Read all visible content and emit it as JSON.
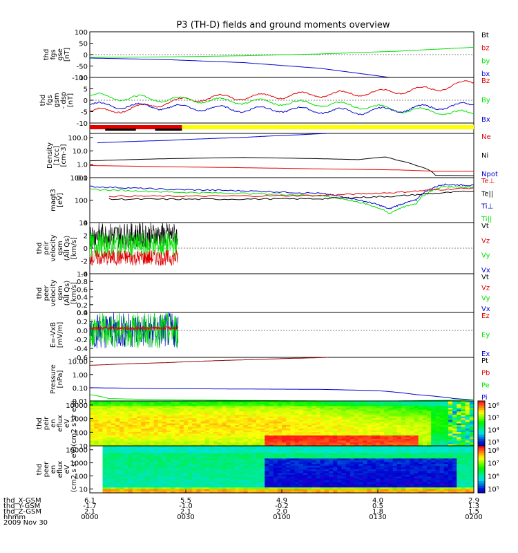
{
  "title": "P3 (TH-D) fields and ground moments overview",
  "colors": {
    "black": "#000000",
    "red": "#e00000",
    "green": "#00e000",
    "blue": "#0000d0",
    "yellow": "#ffff00",
    "darkred": "#8b0000"
  },
  "chart_data": [
    {
      "type": "line",
      "id": "fgs_gse",
      "ylabel_lines": [
        "thd",
        "fgs",
        "gse",
        "[nT]"
      ],
      "ylim": [
        -100,
        100
      ],
      "yticks": [
        -100,
        -50,
        0,
        50,
        100
      ],
      "legend": [
        {
          "text": "Bt",
          "color": "black"
        },
        {
          "text": "bz",
          "color": "red"
        },
        {
          "text": "by",
          "color": "green"
        },
        {
          "text": "bx",
          "color": "blue"
        }
      ],
      "series": [
        {
          "name": "by",
          "color": "green",
          "x": [
            0,
            0.2,
            0.4,
            0.6,
            0.8,
            1.0
          ],
          "y": [
            -12,
            -10,
            -5,
            3,
            15,
            32
          ]
        },
        {
          "name": "bx",
          "color": "blue",
          "x": [
            0,
            0.2,
            0.4,
            0.6,
            0.7,
            0.78,
            0.8
          ],
          "y": [
            -15,
            -22,
            -35,
            -60,
            -82,
            -100,
            -100
          ]
        }
      ]
    },
    {
      "type": "line",
      "id": "fgs_gsm",
      "ylabel_lines": [
        "thd",
        "fgs",
        "gsm",
        "- dsp",
        "[nT]"
      ],
      "ylim": [
        -10,
        10
      ],
      "yticks": [
        -10,
        -5,
        0,
        5,
        10
      ],
      "legend": [
        {
          "text": "Bz",
          "color": "red"
        },
        {
          "text": "By",
          "color": "green"
        },
        {
          "text": "Bx",
          "color": "blue"
        }
      ],
      "series": [
        {
          "name": "Bz",
          "color": "red",
          "x": [
            0,
            0.1,
            0.2,
            0.3,
            0.4,
            0.5,
            0.6,
            0.7,
            0.8,
            0.9,
            1.0
          ],
          "y": [
            -5,
            -4,
            -1,
            1,
            1.5,
            2,
            2.5,
            3,
            4,
            5,
            8
          ]
        },
        {
          "name": "By",
          "color": "green",
          "x": [
            0,
            0.1,
            0.2,
            0.3,
            0.4,
            0.5,
            0.6,
            0.7,
            0.8,
            0.9,
            1.0
          ],
          "y": [
            2,
            1,
            0.5,
            0,
            -0.5,
            -1,
            -1.5,
            -2.5,
            -4,
            -5,
            -6
          ]
        },
        {
          "name": "Bx",
          "color": "blue",
          "x": [
            0,
            0.1,
            0.2,
            0.3,
            0.4,
            0.5,
            0.6,
            0.7,
            0.8,
            0.9,
            1.0
          ],
          "y": [
            -2,
            -2.5,
            -3,
            -3.5,
            -4,
            -4,
            -4.5,
            -5,
            -4,
            -3,
            -2
          ]
        }
      ]
    },
    {
      "type": "line",
      "id": "density",
      "ylabel_lines": [
        "Density",
        "[1/cc]",
        "[cm-3]"
      ],
      "scale": "log",
      "ylim": [
        0.1,
        200
      ],
      "yticks": [
        0.1,
        1.0,
        10.0,
        100.0
      ],
      "yticklabels": [
        "0.1",
        "1.0",
        "10.0",
        "100.0"
      ],
      "legend": [
        {
          "text": "Ne",
          "color": "red"
        },
        {
          "text": "Ni",
          "color": "black"
        },
        {
          "text": "Npot",
          "color": "blue"
        }
      ],
      "series": [
        {
          "name": "Npot",
          "color": "blue",
          "x": [
            0.02,
            0.2,
            0.4,
            0.55,
            0.62
          ],
          "y": [
            40,
            60,
            100,
            160,
            200
          ]
        },
        {
          "name": "Ni",
          "color": "black",
          "x": [
            0,
            0.2,
            0.4,
            0.6,
            0.7,
            0.77,
            0.8,
            0.85,
            0.9,
            1.0
          ],
          "y": [
            1.8,
            2.6,
            3.2,
            2.6,
            2.2,
            3.5,
            2.0,
            0.8,
            0.15,
            0.14
          ]
        },
        {
          "name": "Ne",
          "color": "red",
          "x": [
            0,
            0.2,
            0.4,
            0.6,
            0.8,
            0.9,
            1.0
          ],
          "y": [
            0.8,
            0.65,
            0.55,
            0.45,
            0.38,
            0.3,
            0.3
          ]
        }
      ]
    },
    {
      "type": "line",
      "id": "mom",
      "ylabel_lines": [
        "magt3",
        "[eV]"
      ],
      "scale": "log",
      "ylim": [
        10,
        1000
      ],
      "yticks": [
        10,
        100,
        1000
      ],
      "yticklabels": [
        "10",
        "100",
        "1000"
      ],
      "legend": [
        {
          "text": "Te⊥",
          "color": "red"
        },
        {
          "text": "Te||",
          "color": "black"
        },
        {
          "text": "Ti⊥",
          "color": "blue"
        },
        {
          "text": "Ti||",
          "color": "green"
        }
      ],
      "series": [
        {
          "name": "Ti⊥",
          "color": "blue",
          "x": [
            0,
            0.2,
            0.4,
            0.6,
            0.7,
            0.78,
            0.85,
            0.92,
            1.0
          ],
          "y": [
            400,
            300,
            260,
            200,
            100,
            40,
            100,
            500,
            450
          ]
        },
        {
          "name": "Ti||",
          "color": "green",
          "x": [
            0,
            0.2,
            0.4,
            0.6,
            0.7,
            0.78,
            0.85,
            0.92,
            1.0
          ],
          "y": [
            300,
            230,
            200,
            160,
            80,
            25,
            70,
            400,
            380
          ]
        },
        {
          "name": "Te⊥",
          "color": "red",
          "x": [
            0.05,
            0.3,
            0.6,
            0.8,
            1.0
          ],
          "y": [
            150,
            150,
            160,
            220,
            350
          ]
        },
        {
          "name": "Te||",
          "color": "black",
          "x": [
            0.05,
            0.3,
            0.6,
            0.8,
            1.0
          ],
          "y": [
            110,
            110,
            115,
            150,
            250
          ]
        }
      ]
    },
    {
      "type": "line",
      "id": "peir_vel",
      "ylabel_lines": [
        "thd",
        "peir",
        "velocity",
        "gsm",
        "(All Qs)",
        "[km/s]"
      ],
      "ylim": [
        -4,
        4
      ],
      "yticks": [
        -4,
        -2,
        0,
        2,
        4
      ],
      "legend": [
        {
          "text": "Vt",
          "color": "black"
        },
        {
          "text": "Vz",
          "color": "red"
        },
        {
          "text": "Vy",
          "color": "green"
        },
        {
          "text": "Vx",
          "color": "blue"
        }
      ],
      "noise_end": 0.23
    },
    {
      "type": "line",
      "id": "peer_vel",
      "ylabel_lines": [
        "thd",
        "peer",
        "velocity",
        "gsm",
        "(All Qs)",
        "[km/s]"
      ],
      "ylim": [
        0,
        1.0
      ],
      "yticks": [
        0,
        0.2,
        0.4,
        0.6,
        0.8,
        1.0
      ],
      "yticklabels": [
        "0.0",
        "0.2",
        "0.4",
        "0.6",
        "0.8",
        "1.0"
      ],
      "legend": [
        {
          "text": "Vt",
          "color": "black"
        },
        {
          "text": "Vz",
          "color": "red"
        },
        {
          "text": "Vy",
          "color": "green"
        },
        {
          "text": "Vx",
          "color": "blue"
        }
      ]
    },
    {
      "type": "line",
      "id": "efield",
      "ylabel_lines": [
        "E=-VxB",
        "[mV/m]"
      ],
      "ylim": [
        -0.6,
        0.4
      ],
      "yticks": [
        -0.6,
        -0.4,
        -0.2,
        0.0,
        0.2,
        0.4
      ],
      "yticklabels": [
        "-0.6",
        "-0.4",
        "-0.2",
        "0.0",
        "0.2",
        "0.4"
      ],
      "legend": [
        {
          "text": "Ez",
          "color": "red"
        },
        {
          "text": "Ey",
          "color": "green"
        },
        {
          "text": "Ex",
          "color": "blue"
        }
      ],
      "noise_end": 0.23
    },
    {
      "type": "line",
      "id": "pressure",
      "ylabel_lines": [
        "Pressure",
        "[nPa]"
      ],
      "scale": "log",
      "ylim": [
        0.01,
        20
      ],
      "yticks": [
        0.01,
        0.1,
        1.0,
        10.0
      ],
      "yticklabels": [
        "0.01",
        "0.10",
        "1.00",
        "10.00"
      ],
      "legend": [
        {
          "text": "Pt",
          "color": "black"
        },
        {
          "text": "Pb",
          "color": "red"
        },
        {
          "text": "Pe",
          "color": "green"
        },
        {
          "text": "Pi",
          "color": "blue"
        }
      ],
      "series": [
        {
          "name": "Pt",
          "color": "darkred",
          "x": [
            0,
            0.2,
            0.4,
            0.6,
            0.62
          ],
          "y": [
            5,
            8,
            13,
            19,
            20
          ]
        },
        {
          "name": "Pi",
          "color": "blue",
          "x": [
            0,
            0.2,
            0.4,
            0.6,
            0.75,
            0.85,
            0.95,
            1.0
          ],
          "y": [
            0.1,
            0.085,
            0.08,
            0.075,
            0.06,
            0.03,
            0.015,
            0.012
          ]
        },
        {
          "name": "Pe",
          "color": "green",
          "x": [
            0,
            0.05,
            0.2,
            0.4,
            0.6,
            0.8,
            1.0
          ],
          "y": [
            0.03,
            0.015,
            0.012,
            0.011,
            0.01,
            0.01,
            0.012
          ]
        }
      ]
    },
    {
      "type": "heatmap",
      "id": "peir_en",
      "ylabel_lines": [
        "thd",
        "peir",
        "en",
        "eflux",
        "eV",
        "(cm2 s sr eV)"
      ],
      "scale": "log",
      "ylim": [
        10,
        20000
      ],
      "yticks": [
        10,
        100,
        1000,
        10000
      ],
      "yticklabels": [
        "10",
        "100",
        "1000",
        "10000"
      ],
      "colorbar": {
        "ticks": [
          "10³",
          "10⁴",
          "10⁵",
          "10⁶"
        ]
      }
    },
    {
      "type": "heatmap",
      "id": "peer_en",
      "ylabel_lines": [
        "thd",
        "peer",
        "en",
        "eflux",
        "eV",
        "(cm2 s sr eV)"
      ],
      "scale": "log",
      "ylim": [
        5,
        20000
      ],
      "yticks": [
        10,
        100,
        1000,
        10000
      ],
      "yticklabels": [
        "10",
        "100",
        "1000",
        "10000"
      ],
      "colorbar": {
        "ticks": [
          "10⁵",
          "10⁶",
          "10⁷",
          "10⁸"
        ]
      }
    }
  ],
  "quality_bar": {
    "segments": [
      {
        "from": 0,
        "to": 0.24,
        "color": "red"
      },
      {
        "from": 0.24,
        "to": 1.0,
        "color": "yellow"
      }
    ],
    "black_marks": [
      [
        0.04,
        0.12
      ],
      [
        0.17,
        0.24
      ]
    ]
  },
  "xaxis": {
    "rows": [
      {
        "label": "thd_X-GSM",
        "values": [
          "6.1",
          "5.5",
          "4.9",
          "4.0",
          "2.9"
        ]
      },
      {
        "label": "thd_Y-GSM",
        "values": [
          "-1.7",
          "-1.0",
          "-0.2",
          "0.5",
          "1.3"
        ]
      },
      {
        "label": "thd_Z-GSM",
        "values": [
          "2.1",
          "2.1",
          "2.0",
          "1.8",
          "1.5"
        ]
      },
      {
        "label": "hhmm",
        "values": [
          "0000",
          "0030",
          "0100",
          "0130",
          "0200"
        ]
      }
    ],
    "date": "2009 Nov 30"
  }
}
